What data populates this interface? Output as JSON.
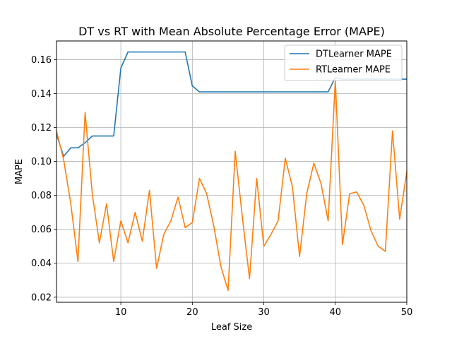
{
  "chart_data": {
    "type": "line",
    "title": "DT vs RT with Mean Absolute Percentage Error (MAPE)",
    "xlabel": "Leaf Size",
    "ylabel": "MAPE",
    "xlim": [
      1,
      50
    ],
    "ylim": [
      0.017,
      0.171
    ],
    "x_ticks": [
      10,
      20,
      30,
      40,
      50
    ],
    "y_ticks": [
      0.02,
      0.04,
      0.06,
      0.08,
      0.1,
      0.12,
      0.14,
      0.16
    ],
    "x_tick_labels": [
      "10",
      "20",
      "30",
      "40",
      "50"
    ],
    "y_tick_labels": [
      "0.02",
      "0.04",
      "0.06",
      "0.08",
      "0.10",
      "0.12",
      "0.14",
      "0.16"
    ],
    "grid": true,
    "legend_position": "top-right",
    "x": [
      1,
      2,
      3,
      4,
      5,
      6,
      7,
      8,
      9,
      10,
      11,
      12,
      13,
      14,
      15,
      16,
      17,
      18,
      19,
      20,
      21,
      22,
      23,
      24,
      25,
      26,
      27,
      28,
      29,
      30,
      31,
      32,
      33,
      34,
      35,
      36,
      37,
      38,
      39,
      40,
      41,
      42,
      43,
      44,
      45,
      46,
      47,
      48,
      49,
      50
    ],
    "series": [
      {
        "name": "DTLearner MAPE",
        "color": "#1f77b4",
        "values": [
          0.116,
          0.103,
          0.108,
          0.108,
          0.111,
          0.115,
          0.115,
          0.115,
          0.115,
          0.155,
          0.1645,
          0.1645,
          0.1645,
          0.1645,
          0.1645,
          0.1645,
          0.1645,
          0.1645,
          0.1645,
          0.1445,
          0.141,
          0.141,
          0.141,
          0.141,
          0.141,
          0.141,
          0.141,
          0.141,
          0.141,
          0.141,
          0.141,
          0.141,
          0.141,
          0.141,
          0.141,
          0.141,
          0.141,
          0.141,
          0.141,
          0.1495,
          0.1485,
          0.1485,
          0.1485,
          0.1485,
          0.1485,
          0.1485,
          0.1485,
          0.1485,
          0.1485,
          0.1485
        ]
      },
      {
        "name": "RTLearner MAPE",
        "color": "#ff7f0e",
        "values": [
          0.118,
          0.101,
          0.075,
          0.041,
          0.129,
          0.081,
          0.052,
          0.075,
          0.041,
          0.065,
          0.052,
          0.07,
          0.053,
          0.083,
          0.037,
          0.057,
          0.065,
          0.079,
          0.061,
          0.064,
          0.09,
          0.081,
          0.062,
          0.038,
          0.024,
          0.106,
          0.067,
          0.031,
          0.09,
          0.05,
          0.057,
          0.065,
          0.102,
          0.085,
          0.044,
          0.081,
          0.099,
          0.087,
          0.065,
          0.148,
          0.051,
          0.081,
          0.082,
          0.074,
          0.059,
          0.05,
          0.047,
          0.118,
          0.066,
          0.094
        ]
      }
    ]
  }
}
